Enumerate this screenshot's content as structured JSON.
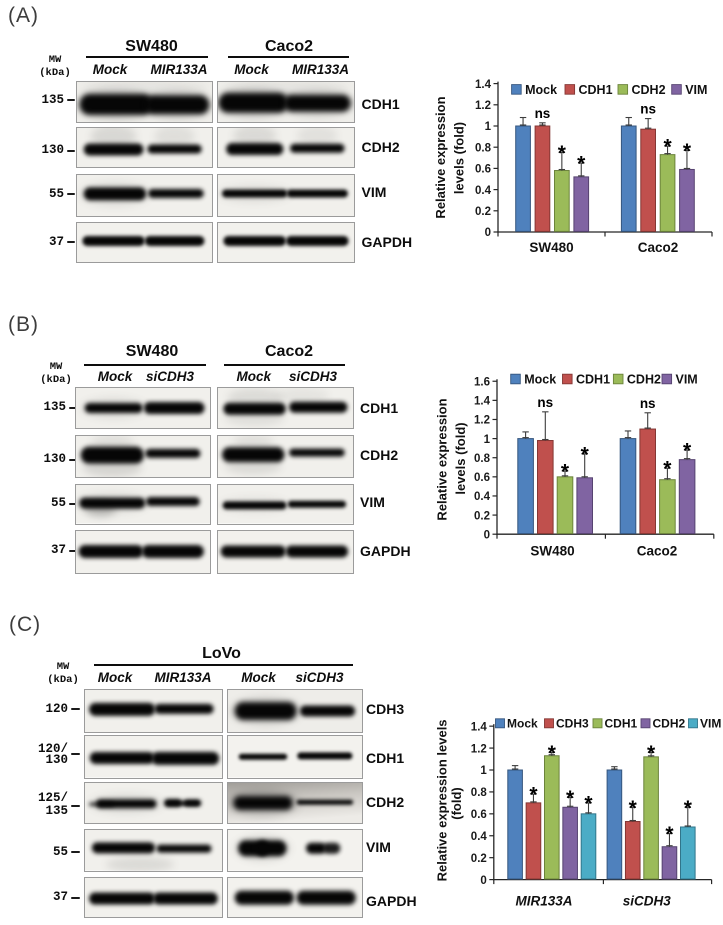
{
  "figure": {
    "description": "Western blot and qPCR figure with panels A, B, C",
    "panels": [
      {
        "label": "(A)",
        "mw_header": [
          "MW",
          "(kDa)"
        ],
        "groups": [
          {
            "name": "SW480",
            "lanes": [
              "Mock",
              "MIR133A"
            ]
          },
          {
            "name": "Caco2",
            "lanes": [
              "Mock",
              "MIR133A"
            ]
          }
        ],
        "rows": [
          {
            "protein": "CDH1",
            "mw": [
              "135"
            ]
          },
          {
            "protein": "CDH2",
            "mw": [
              "130"
            ]
          },
          {
            "protein": "VIM",
            "mw": [
              "55"
            ]
          },
          {
            "protein": "GAPDH",
            "mw": [
              "37"
            ]
          }
        ]
      },
      {
        "label": "(B)",
        "mw_header": [
          "MW",
          "(kDa)"
        ],
        "groups": [
          {
            "name": "SW480",
            "lanes": [
              "Mock",
              "siCDH3"
            ]
          },
          {
            "name": "Caco2",
            "lanes": [
              "Mock",
              "siCDH3"
            ]
          }
        ],
        "rows": [
          {
            "protein": "CDH1",
            "mw": [
              "135"
            ]
          },
          {
            "protein": "CDH2",
            "mw": [
              "130"
            ]
          },
          {
            "protein": "VIM",
            "mw": [
              "55"
            ]
          },
          {
            "protein": "GAPDH",
            "mw": [
              "37"
            ]
          }
        ]
      },
      {
        "label": "(C)",
        "mw_header": [
          "MW",
          "(kDa)"
        ],
        "groups": [
          {
            "name": "LoVo",
            "lanes": [
              "Mock",
              "MIR133A",
              "Mock",
              "siCDH3"
            ]
          }
        ],
        "rows": [
          {
            "protein": "CDH3",
            "mw": [
              "120"
            ]
          },
          {
            "protein": "CDH1",
            "mw": [
              "120/",
              "130"
            ]
          },
          {
            "protein": "CDH2",
            "mw": [
              "125/",
              "135"
            ]
          },
          {
            "protein": "VIM",
            "mw": [
              "55"
            ]
          },
          {
            "protein": "GAPDH",
            "mw": [
              "37"
            ]
          }
        ]
      }
    ]
  },
  "chart_data": [
    {
      "type": "bar",
      "panel": "A",
      "title": "",
      "xlabel": "",
      "ylabel": "Relative expression levels (fold)",
      "ylabel_lines": [
        "Relative expression",
        "levels (fold)"
      ],
      "ylim": [
        0,
        1.4
      ],
      "yticks": [
        "0",
        "0.2",
        "0.4",
        "0.6",
        "0.8",
        "1",
        "1.2",
        "1.4"
      ],
      "grid": false,
      "legend_position": "top",
      "categories": [
        "SW480",
        "Caco2"
      ],
      "series": [
        {
          "name": "Mock",
          "color": "#4f81bd",
          "border": "#35567e",
          "values": [
            1.0,
            1.0
          ],
          "errors": [
            0.08,
            0.08
          ],
          "sig": [
            "",
            ""
          ]
        },
        {
          "name": "CDH1",
          "color": "#c0504d",
          "border": "#843734",
          "values": [
            1.0,
            0.97
          ],
          "errors": [
            0.03,
            0.1
          ],
          "sig": [
            "ns",
            "ns"
          ]
        },
        {
          "name": "CDH2",
          "color": "#9bbb59",
          "border": "#6b833b",
          "values": [
            0.58,
            0.73
          ],
          "errors": [
            0.17,
            0.08
          ],
          "sig": [
            "*",
            "*"
          ]
        },
        {
          "name": "VIM",
          "color": "#8064a2",
          "border": "#564370",
          "values": [
            0.52,
            0.59
          ],
          "errors": [
            0.13,
            0.18
          ],
          "sig": [
            "*",
            "*"
          ]
        }
      ]
    },
    {
      "type": "bar",
      "panel": "B",
      "title": "",
      "xlabel": "",
      "ylabel": "Relative expression levels (fold)",
      "ylabel_lines": [
        "Relative expression",
        "levels (fold)"
      ],
      "ylim": [
        0,
        1.6
      ],
      "yticks": [
        "0",
        "0.2",
        "0.4",
        "0.6",
        "0.8",
        "1",
        "1.2",
        "1.4",
        "1.6"
      ],
      "grid": false,
      "legend_position": "top",
      "categories": [
        "SW480",
        "Caco2"
      ],
      "series": [
        {
          "name": "Mock",
          "color": "#4f81bd",
          "border": "#35567e",
          "values": [
            1.0,
            1.0
          ],
          "errors": [
            0.07,
            0.08
          ],
          "sig": [
            "",
            ""
          ]
        },
        {
          "name": "CDH1",
          "color": "#c0504d",
          "border": "#843734",
          "values": [
            0.98,
            1.1
          ],
          "errors": [
            0.3,
            0.17
          ],
          "sig": [
            "ns",
            "ns"
          ]
        },
        {
          "name": "CDH2",
          "color": "#9bbb59",
          "border": "#6b833b",
          "values": [
            0.6,
            0.57
          ],
          "errors": [
            0.06,
            0.12
          ],
          "sig": [
            "*",
            "*"
          ]
        },
        {
          "name": "VIM",
          "color": "#8064a2",
          "border": "#564370",
          "values": [
            0.59,
            0.78
          ],
          "errors": [
            0.25,
            0.1
          ],
          "sig": [
            "*",
            "*"
          ]
        }
      ]
    },
    {
      "type": "bar",
      "panel": "C",
      "title": "",
      "xlabel": "",
      "ylabel": "Relative expression levels (fold)",
      "ylabel_lines": [
        "Relative expression levels",
        "(fold)"
      ],
      "ylim": [
        0,
        1.4
      ],
      "yticks": [
        "0",
        "0.2",
        "0.4",
        "0.6",
        "0.8",
        "1",
        "1.2",
        "1.4"
      ],
      "grid": false,
      "legend_position": "top",
      "categories": [
        "MIR133A",
        "siCDH3"
      ],
      "categories_italic": true,
      "series": [
        {
          "name": "Mock",
          "color": "#4f81bd",
          "border": "#35567e",
          "values": [
            1.0,
            1.0
          ],
          "errors": [
            0.04,
            0.03
          ],
          "sig": [
            "",
            ""
          ]
        },
        {
          "name": "CDH3",
          "color": "#c0504d",
          "border": "#843734",
          "values": [
            0.7,
            0.53
          ],
          "errors": [
            0.08,
            0.13
          ],
          "sig": [
            "*",
            "*"
          ]
        },
        {
          "name": "CDH1",
          "color": "#9bbb59",
          "border": "#6b833b",
          "values": [
            1.13,
            1.12
          ],
          "errors": [
            0.03,
            0.04
          ],
          "sig": [
            "*",
            "*"
          ]
        },
        {
          "name": "CDH2",
          "color": "#8064a2",
          "border": "#564370",
          "values": [
            0.66,
            0.3
          ],
          "errors": [
            0.09,
            0.12
          ],
          "sig": [
            "*",
            "*"
          ]
        },
        {
          "name": "VIM",
          "color": "#4bacc6",
          "border": "#31758a",
          "values": [
            0.6,
            0.48
          ],
          "errors": [
            0.1,
            0.18
          ],
          "sig": [
            "*",
            "*"
          ]
        }
      ]
    }
  ]
}
